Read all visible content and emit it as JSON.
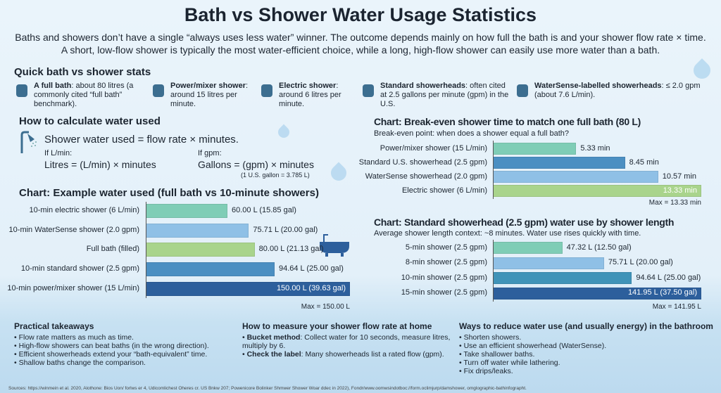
{
  "title": "Bath vs Shower Water Usage Statistics",
  "subtitle": [
    "Baths and showers don’t have a single “always uses less water” winner. The outcome depends mainly on how full the bath is and your shower flow rate × time.",
    "A short, low-flow shower is typically the most water-efficient choice, while a long, high-flow shower can easily use more water than a bath."
  ],
  "quick_stats": {
    "heading": "Quick bath vs shower stats",
    "items": [
      {
        "icon": "bathtub-icon",
        "bold": "A full bath",
        "text": ": about 80 litres (a commonly cited “full bath” benchmark)."
      },
      {
        "icon": "shower-head-icon",
        "bold": "Power/mixer shower",
        "text": ": around 15 litres per minute."
      },
      {
        "icon": "electric-shower-icon",
        "bold": "Electric shower",
        "text": ": around 6 litres per minute."
      },
      {
        "icon": "showerhead-icon",
        "bold": "Standard showerheads",
        "text": ": often cited at 2.5 gallons per minute (gpm) in the U.S."
      },
      {
        "icon": "watersense-badge-icon",
        "bold": "WaterSense-labelled showerheads",
        "text": ": ≤ 2.0 gpm (about 7.6 L/min)."
      }
    ]
  },
  "calc": {
    "heading": "How to calculate water used",
    "main": "Shower water used = flow rate × minutes.",
    "lmin_label": "If L/min:",
    "lmin_formula": "Litres = (L/min) × minutes",
    "gpm_label": "If gpm:",
    "gpm_formula": "Gallons = (gpm) × minutes",
    "gpm_note": "(1 U.S. gallon = 3.785 L)"
  },
  "chart_data": [
    {
      "type": "bar",
      "orientation": "horizontal",
      "title": "Chart: Example water used (full bath vs 10-minute showers)",
      "categories": [
        "10-min electric shower (6 L/min)",
        "10-min WaterSense shower (2.0 gpm)",
        "Full bath (filled)",
        "10-min standard shower (2.5 gpm)",
        "10-min power/mixer shower (15 L/min)"
      ],
      "values": [
        60.0,
        75.71,
        80.0,
        94.64,
        150.0
      ],
      "labels": [
        "60.00 L (15.85 gal)",
        "75.71 L (20.00 gal)",
        "80.00 L (21.13 gal)",
        "94.64 L (25.00 gal)",
        "150.00 L (39.63 gal)"
      ],
      "colors": [
        "#7fcdb6",
        "#8fc0e6",
        "#a9d48c",
        "#4b8fc2",
        "#2d5f9c"
      ],
      "max": 150.0,
      "max_label": "Max = 150.00 L"
    },
    {
      "type": "bar",
      "orientation": "horizontal",
      "title": "Chart: Break-even shower time to match one full bath (80 L)",
      "subtitle": "Break-even point: when does a shower equal a full bath?",
      "categories": [
        "Power/mixer shower (15 L/min)",
        "Standard U.S. showerhead (2.5 gpm)",
        "WaterSense showerhead (2.0 gpm)",
        "Electric shower (6 L/min)"
      ],
      "values": [
        5.33,
        8.45,
        10.57,
        13.33
      ],
      "labels": [
        "5.33 min",
        "8.45 min",
        "10.57 min",
        "13.33 min"
      ],
      "colors": [
        "#7fcdb6",
        "#4b8fc2",
        "#8fc0e6",
        "#a9d48c"
      ],
      "max": 13.33,
      "max_label": "Max = 13.33 min"
    },
    {
      "type": "bar",
      "orientation": "horizontal",
      "title": "Chart: Standard showerhead (2.5 gpm) water use by shower length",
      "subtitle": "Average shower length context: ~8 minutes. Water use rises quickly with time.",
      "categories": [
        "5-min shower (2.5 gpm)",
        "8-min shower (2.5 gpm)",
        "10-min shower (2.5 gpm)",
        "15-min shower (2.5 gpm)"
      ],
      "values": [
        47.32,
        75.71,
        94.64,
        141.95
      ],
      "labels": [
        "47.32 L (12.50 gal)",
        "75.71 L (20.00 gal)",
        "94.64 L (25.00 gal)",
        "141.95 L (37.50 gal)"
      ],
      "colors": [
        "#7fcdb6",
        "#8fc0e6",
        "#3f93b8",
        "#2d5f9c"
      ],
      "max": 141.95,
      "max_label": "Max = 141.95 L"
    }
  ],
  "takeaways": {
    "heading": "Practical takeaways",
    "items": [
      "Flow rate matters as much as time.",
      "High-flow showers can beat baths (in the wrong direction).",
      "Efficient showerheads extend your “bath-equivalent” time.",
      "Shallow baths change the comparison."
    ]
  },
  "measure": {
    "heading": "How to measure your shower flow rate at home",
    "items": [
      {
        "bold": "Bucket method",
        "text": ": Collect water for 10 seconds, measure litres, multiply by 6."
      },
      {
        "bold": "Check the label",
        "text": ": Many showerheads list a rated flow (gpm)."
      }
    ]
  },
  "reduce": {
    "heading": "Ways to reduce water use (and usually energy) in the bathroom",
    "items": [
      "Shorten showers.",
      "Use an efficient showerhead (WaterSense).",
      "Take shallower baths.",
      "Turn off water while lathering.",
      "Fix drips/leaks."
    ]
  },
  "sources": "Sources: https://winmein et al. 2020, Alothone: Bios Uon/ forlws er 4, Udicomlichest Oheres cr. US Bnkw 207; Powenicore Bolinker Shmwer Shower Woar ddec in 2022), Fondr/www.oomwsindotboc://form.oclimjurp/damshower, omglographic-bathinfographt."
}
